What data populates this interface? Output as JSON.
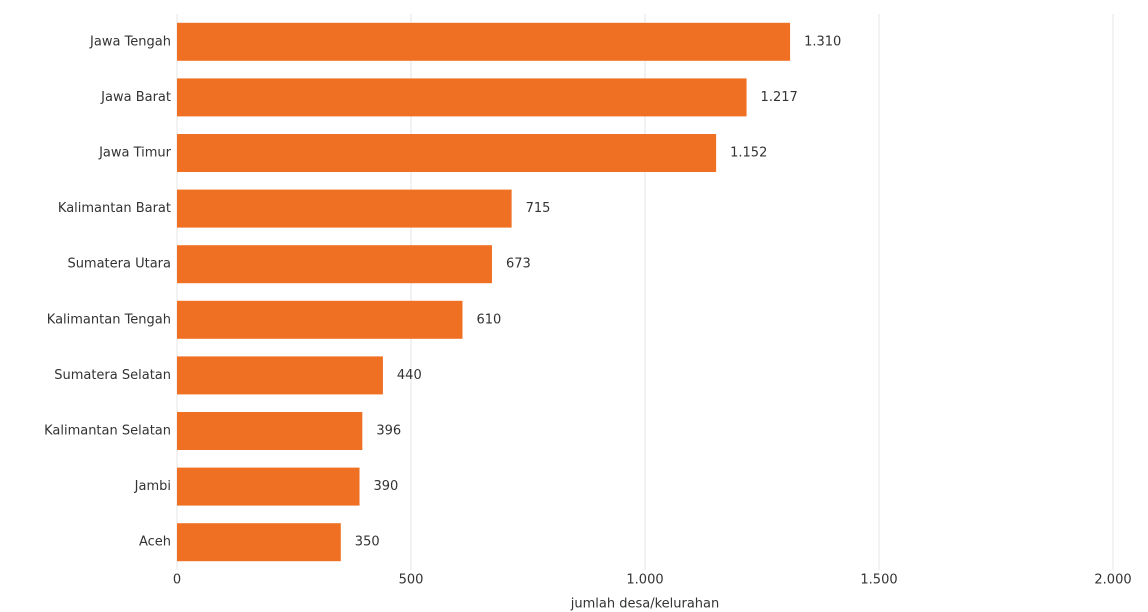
{
  "chart_data": {
    "type": "bar",
    "orientation": "horizontal",
    "categories": [
      "Jawa Tengah",
      "Jawa Barat",
      "Jawa Timur",
      "Kalimantan Barat",
      "Sumatera Utara",
      "Kalimantan Tengah",
      "Sumatera Selatan",
      "Kalimantan Selatan",
      "Jambi",
      "Aceh"
    ],
    "values": [
      1310,
      1217,
      1152,
      715,
      673,
      610,
      440,
      396,
      390,
      350
    ],
    "value_labels": [
      "1.310",
      "1.217",
      "1.152",
      "715",
      "673",
      "610",
      "440",
      "396",
      "390",
      "350"
    ],
    "color": "#f07023",
    "xlim": [
      0,
      2000
    ],
    "xticks": [
      0,
      500,
      {
        "value": 1000,
        "label": "1.000"
      },
      {
        "value": 1500,
        "label": "1.500"
      },
      {
        "value": 2000,
        "label": "2.000"
      }
    ],
    "x_label": "jumlah desa/kelurahan",
    "grid": true
  }
}
